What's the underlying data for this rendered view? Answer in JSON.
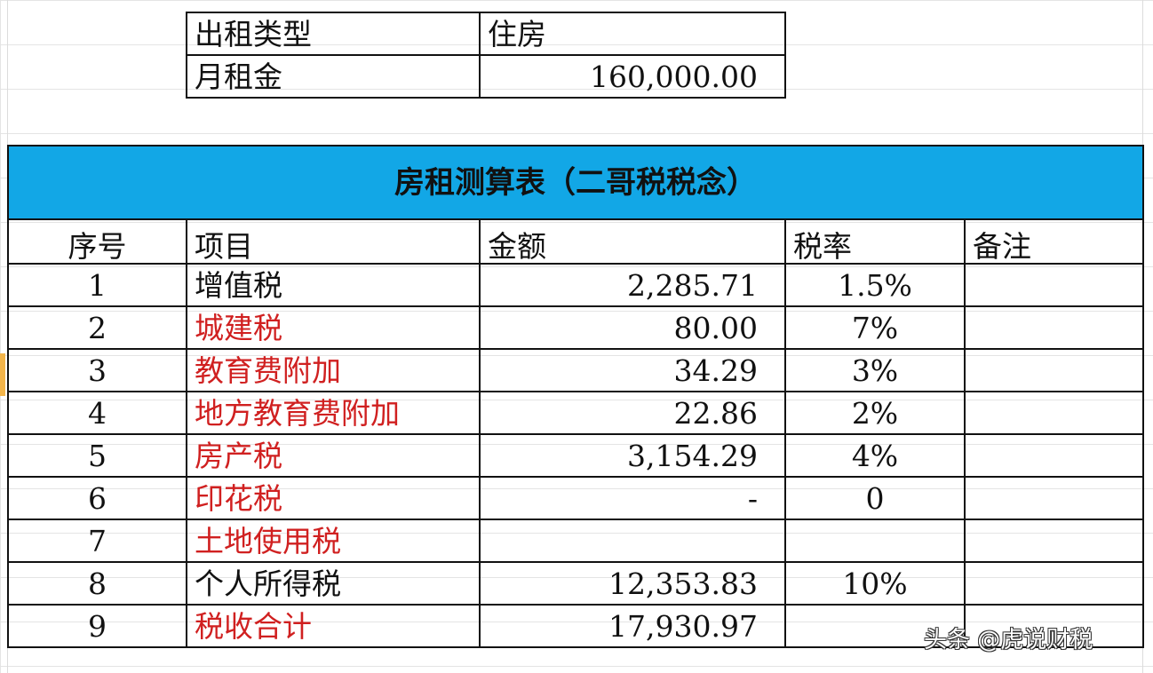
{
  "summary": {
    "rows": [
      {
        "label": "出租类型",
        "value": "住房"
      },
      {
        "label": "月租金",
        "value": "160,000.00"
      }
    ]
  },
  "table": {
    "title": "房租测算表（二哥税税念）",
    "title_bg": "#12a7e6",
    "headers": [
      "序号",
      "项目",
      "金额",
      "税率",
      "备注"
    ],
    "rows": [
      {
        "no": "1",
        "item": "增值税",
        "amount": "2,285.71",
        "rate": "1.5%",
        "note": "",
        "item_color": "#111111"
      },
      {
        "no": "2",
        "item": "城建税",
        "amount": "80.00",
        "rate": "7%",
        "note": "",
        "item_color": "#d02020"
      },
      {
        "no": "3",
        "item": "教育费附加",
        "amount": "34.29",
        "rate": "3%",
        "note": "",
        "item_color": "#d02020"
      },
      {
        "no": "4",
        "item": "地方教育费附加",
        "amount": "22.86",
        "rate": "2%",
        "note": "",
        "item_color": "#d02020"
      },
      {
        "no": "5",
        "item": "房产税",
        "amount": "3,154.29",
        "rate": "4%",
        "note": "",
        "item_color": "#d02020"
      },
      {
        "no": "6",
        "item": "印花税",
        "amount": "-",
        "rate": "0",
        "note": "",
        "item_color": "#d02020"
      },
      {
        "no": "7",
        "item": "土地使用税",
        "amount": "",
        "rate": "",
        "note": "",
        "item_color": "#d02020"
      },
      {
        "no": "8",
        "item": "个人所得税",
        "amount": "12,353.83",
        "rate": "10%",
        "note": "",
        "item_color": "#111111"
      },
      {
        "no": "9",
        "item": "税收合计",
        "amount": "17,930.97",
        "rate": "",
        "note": "",
        "item_color": "#d02020"
      }
    ]
  },
  "watermark": "头条 @虎说财税"
}
